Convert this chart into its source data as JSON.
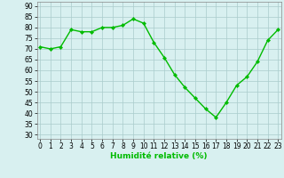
{
  "x": [
    0,
    1,
    2,
    3,
    4,
    5,
    6,
    7,
    8,
    9,
    10,
    11,
    12,
    13,
    14,
    15,
    16,
    17,
    18,
    19,
    20,
    21,
    22,
    23
  ],
  "y": [
    71,
    70,
    71,
    79,
    78,
    78,
    80,
    80,
    81,
    84,
    82,
    73,
    66,
    58,
    52,
    47,
    42,
    38,
    45,
    53,
    57,
    64,
    74,
    79
  ],
  "line_color": "#00bb00",
  "marker": "D",
  "marker_size": 2.2,
  "bg_color": "#d8f0f0",
  "grid_color": "#aacccc",
  "xlabel": "Humidité relative (%)",
  "yticks": [
    30,
    35,
    40,
    45,
    50,
    55,
    60,
    65,
    70,
    75,
    80,
    85,
    90
  ],
  "xticks": [
    0,
    1,
    2,
    3,
    4,
    5,
    6,
    7,
    8,
    9,
    10,
    11,
    12,
    13,
    14,
    15,
    16,
    17,
    18,
    19,
    20,
    21,
    22,
    23
  ],
  "xlim": [
    -0.3,
    23.3
  ],
  "ylim": [
    28,
    92
  ],
  "tick_fontsize": 5.5,
  "xlabel_fontsize": 6.5,
  "linewidth": 1.0
}
